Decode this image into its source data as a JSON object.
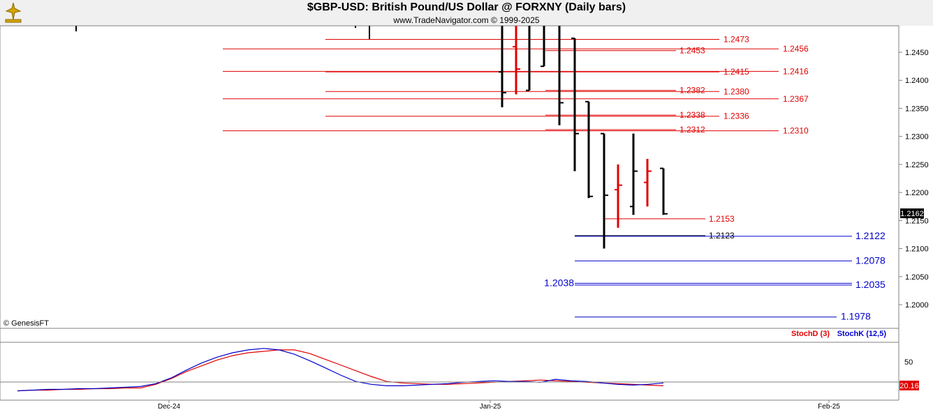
{
  "header": {
    "title": "$GBP-USD:  British Pound/US Dollar @ FORXNY  (Daily bars)",
    "copyright": "www.TradeNavigator.com © 1999-2025"
  },
  "watermark": "© GenesisFT",
  "colors": {
    "red": "#e00000",
    "blue": "#0000cc",
    "black": "#000000",
    "bg": "#ffffff"
  },
  "chart_data": [
    {
      "type": "ohlc",
      "title": "$GBP-USD:  British Pound/US Dollar @ FORXNY  (Daily bars)",
      "y_ticks": [
        "1.2450",
        "1.2400",
        "1.2350",
        "1.2300",
        "1.2250",
        "1.2200",
        "1.2150",
        "1.2100",
        "1.2050",
        "1.2000"
      ],
      "y_tick_values": [
        1.245,
        1.24,
        1.235,
        1.23,
        1.225,
        1.22,
        1.215,
        1.21,
        1.205,
        1.2
      ],
      "x_ticks": [
        "Dec-24",
        "Jan-25",
        "Feb-25"
      ],
      "last_price_label": "1.2162",
      "bars": [
        {
          "o": 1.2415,
          "h": 1.2575,
          "l": 1.2352,
          "c": 1.2378,
          "color": "black"
        },
        {
          "o": 1.246,
          "h": 1.2545,
          "l": 1.2375,
          "c": 1.242,
          "color": "red"
        },
        {
          "o": 1.2382,
          "h": 1.252,
          "l": 1.2382,
          "c": 1.2525,
          "color": "black"
        },
        {
          "o": 1.2425,
          "h": 1.256,
          "l": 1.2425,
          "c": 1.253,
          "color": "black"
        },
        {
          "o": 1.252,
          "h": 1.2525,
          "l": 1.232,
          "c": 1.236,
          "color": "black"
        },
        {
          "o": 1.2475,
          "h": 1.2475,
          "l": 1.2238,
          "c": 1.2305,
          "color": "black"
        },
        {
          "o": 1.2362,
          "h": 1.2362,
          "l": 1.219,
          "c": 1.2193,
          "color": "black"
        },
        {
          "o": 1.2305,
          "h": 1.2305,
          "l": 1.21,
          "c": 1.2195,
          "color": "black"
        },
        {
          "o": 1.2205,
          "h": 1.225,
          "l": 1.2137,
          "c": 1.2213,
          "color": "red"
        },
        {
          "o": 1.2175,
          "h": 1.2305,
          "l": 1.216,
          "c": 1.2238,
          "color": "black"
        },
        {
          "o": 1.2218,
          "h": 1.226,
          "l": 1.2175,
          "c": 1.2238,
          "color": "red"
        },
        {
          "o": 1.2243,
          "h": 1.2243,
          "l": 1.216,
          "c": 1.2162,
          "color": "black"
        }
      ],
      "levels": [
        {
          "value": 1.2473,
          "label": "1.2473",
          "color": "red"
        },
        {
          "value": 1.2456,
          "label": "1.2456",
          "color": "red"
        },
        {
          "value": 1.2453,
          "label": "1.2453",
          "color": "red"
        },
        {
          "value": 1.2416,
          "label": "1.2416",
          "color": "red"
        },
        {
          "value": 1.2415,
          "label": "1.2415",
          "color": "red"
        },
        {
          "value": 1.2382,
          "label": "1.2382",
          "color": "red"
        },
        {
          "value": 1.238,
          "label": "1.2380",
          "color": "red"
        },
        {
          "value": 1.2367,
          "label": "1.2367",
          "color": "red"
        },
        {
          "value": 1.2338,
          "label": "1.2338",
          "color": "red"
        },
        {
          "value": 1.2336,
          "label": "1.2336",
          "color": "red"
        },
        {
          "value": 1.2312,
          "label": "1.2312",
          "color": "red"
        },
        {
          "value": 1.231,
          "label": "1.2310",
          "color": "red"
        },
        {
          "value": 1.2153,
          "label": "1.2153",
          "color": "red"
        },
        {
          "value": 1.2123,
          "label": "1.2123",
          "color": "black"
        },
        {
          "value": 1.2122,
          "label": "1.2122",
          "color": "blue"
        },
        {
          "value": 1.2078,
          "label": "1.2078",
          "color": "blue"
        },
        {
          "value": 1.2038,
          "label": "1.2038",
          "color": "blue"
        },
        {
          "value": 1.2035,
          "label": "1.2035",
          "color": "blue"
        },
        {
          "value": 1.1978,
          "label": "1.1978",
          "color": "blue"
        }
      ]
    },
    {
      "type": "line",
      "legend": [
        "StochD (3)",
        "StochK (12,5)"
      ],
      "y_ticks": [
        "50"
      ],
      "last_value_label": "20.16",
      "series": [
        {
          "name": "StochD (3)",
          "color": "red",
          "values": [
            13,
            14,
            14,
            15,
            15,
            16,
            16,
            17,
            17,
            22,
            30,
            40,
            48,
            56,
            62,
            66,
            68,
            70,
            70,
            65,
            57,
            49,
            41,
            33,
            26,
            24,
            23,
            22,
            22,
            23,
            24,
            25,
            26,
            27,
            28,
            27,
            26,
            25,
            24,
            23,
            22,
            21,
            20
          ]
        },
        {
          "name": "StochK (12,5)",
          "color": "blue",
          "values": [
            13,
            14,
            15,
            15,
            16,
            16,
            17,
            18,
            19,
            23,
            31,
            42,
            52,
            60,
            66,
            70,
            72,
            70,
            64,
            55,
            45,
            35,
            26,
            22,
            20,
            20,
            21,
            22,
            23,
            25,
            26,
            27,
            26,
            26,
            25,
            29,
            27,
            26,
            24,
            22,
            21,
            22,
            24
          ]
        }
      ]
    }
  ]
}
